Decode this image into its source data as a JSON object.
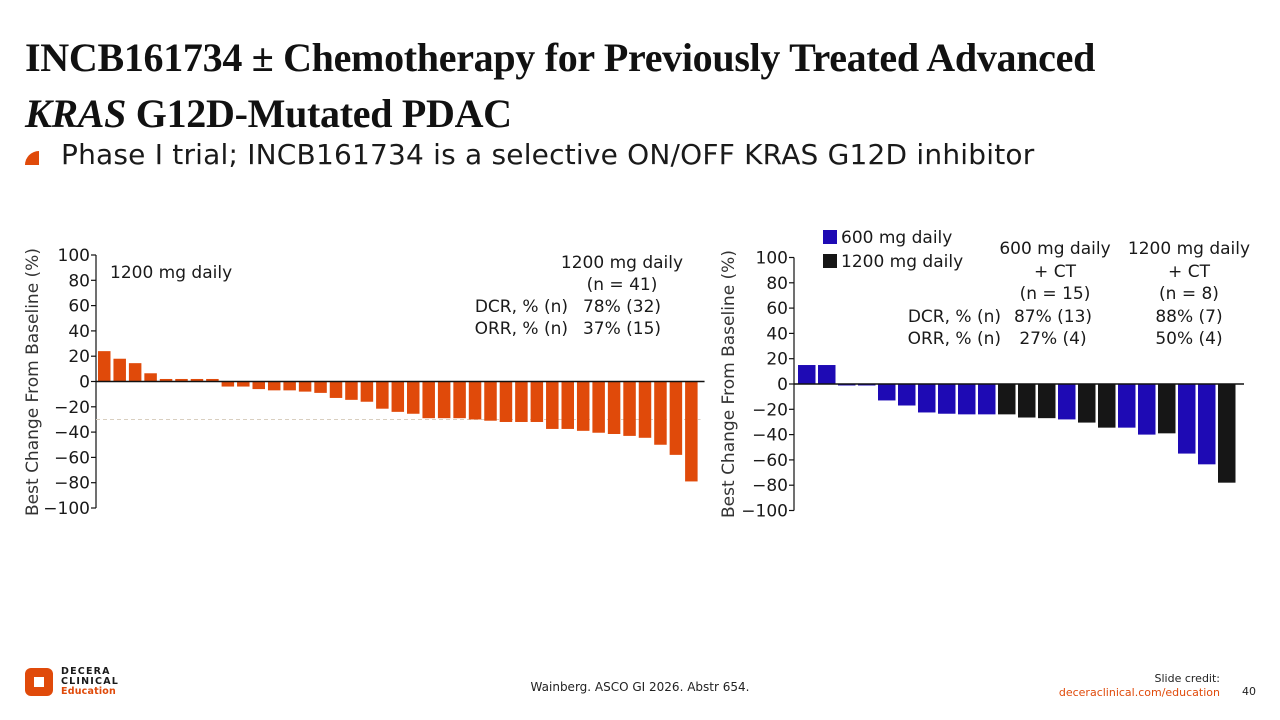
{
  "slide": {
    "title_line1": "INCB161734 ± Chemotherapy for Previously Treated Advanced",
    "title_line2_italic": "KRAS",
    "title_line2_rest": " G12D-Mutated PDAC",
    "bullet": "Phase I trial; INCB161734 is a selective ON/OFF KRAS G12D inhibitor",
    "citation": "Wainberg. ASCO GI 2026. Abstr 654.",
    "logo": {
      "line1": "DECERA",
      "line2": "CLINICAL",
      "line3": "Education"
    },
    "credit_label": "Slide credit:",
    "credit_url": "deceraclinical.com/education",
    "page_number": "40",
    "colors": {
      "accent": "#e04a0a",
      "blue": "#1e0ab4",
      "black": "#161616"
    }
  },
  "chart_data": [
    {
      "type": "bar",
      "title": "1200 mg daily",
      "ylabel": "Best Change From Baseline (%)",
      "xlabel": "",
      "ylim": [
        -100,
        100
      ],
      "yticks": [
        100,
        80,
        60,
        40,
        20,
        0,
        -20,
        -40,
        -60,
        -80,
        -100
      ],
      "reference_line": -30,
      "annotation": {
        "header": [
          "1200 mg daily",
          "(n = 41)"
        ],
        "rows": [
          {
            "label": "DCR, % (n)",
            "value": "78% (32)"
          },
          {
            "label": "ORR, % (n)",
            "value": "37% (15)"
          }
        ]
      },
      "series": [
        {
          "name": "1200 mg daily",
          "color": "#e04a0a",
          "values": [
            24,
            18,
            14.5,
            6.5,
            2,
            2,
            2,
            2,
            -4,
            -4,
            -6,
            -7,
            -7,
            -8,
            -9,
            -13,
            -14.5,
            -16,
            -21.5,
            -24,
            -25.5,
            -29,
            -29,
            -29,
            -30,
            -31,
            -32,
            -32,
            -32,
            -37.5,
            -37.5,
            -39,
            -40.5,
            -41.5,
            -43,
            -44.5,
            -50,
            -58,
            -79
          ]
        }
      ]
    },
    {
      "type": "bar",
      "title": "",
      "ylabel": "Best Change From Baseline (%)",
      "xlabel": "",
      "ylim": [
        -100,
        100
      ],
      "yticks": [
        100,
        80,
        60,
        40,
        20,
        0,
        -20,
        -40,
        -60,
        -80,
        -100
      ],
      "legend": [
        {
          "label": "600 mg daily",
          "color": "#1e0ab4"
        },
        {
          "label": "1200 mg daily",
          "color": "#161616"
        }
      ],
      "legend_position": "top-left",
      "annotation": {
        "row_labels": [
          "DCR, % (n)",
          "ORR, % (n)"
        ],
        "groups": [
          {
            "header": [
              "600 mg daily",
              "+ CT",
              "(n = 15)"
            ],
            "values": [
              "87% (13)",
              "27% (4)"
            ]
          },
          {
            "header": [
              "1200 mg daily",
              "+ CT",
              "(n = 8)"
            ],
            "values": [
              "88% (7)",
              "50% (4)"
            ]
          }
        ]
      },
      "bars": [
        {
          "value": 15,
          "group": "600 mg daily"
        },
        {
          "value": 15,
          "group": "600 mg daily"
        },
        {
          "value": -1,
          "group": "600 mg daily"
        },
        {
          "value": -1,
          "group": "600 mg daily"
        },
        {
          "value": -13,
          "group": "600 mg daily"
        },
        {
          "value": -17,
          "group": "600 mg daily"
        },
        {
          "value": -22.5,
          "group": "600 mg daily"
        },
        {
          "value": -23.5,
          "group": "600 mg daily"
        },
        {
          "value": -24,
          "group": "600 mg daily"
        },
        {
          "value": -24,
          "group": "600 mg daily"
        },
        {
          "value": -24,
          "group": "1200 mg daily"
        },
        {
          "value": -26.5,
          "group": "1200 mg daily"
        },
        {
          "value": -27,
          "group": "1200 mg daily"
        },
        {
          "value": -28,
          "group": "600 mg daily"
        },
        {
          "value": -30.5,
          "group": "1200 mg daily"
        },
        {
          "value": -34.5,
          "group": "1200 mg daily"
        },
        {
          "value": -34.5,
          "group": "600 mg daily"
        },
        {
          "value": -40,
          "group": "600 mg daily"
        },
        {
          "value": -39,
          "group": "1200 mg daily"
        },
        {
          "value": -55,
          "group": "600 mg daily"
        },
        {
          "value": -63.5,
          "group": "600 mg daily"
        },
        {
          "value": -78,
          "group": "1200 mg daily"
        }
      ]
    }
  ]
}
